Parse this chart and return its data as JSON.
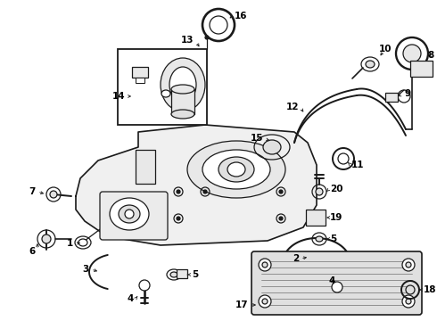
{
  "bg_color": "#ffffff",
  "lc": "#1a1a1a",
  "lw": 0.9,
  "figsize": [
    4.9,
    3.6
  ],
  "dpi": 100
}
